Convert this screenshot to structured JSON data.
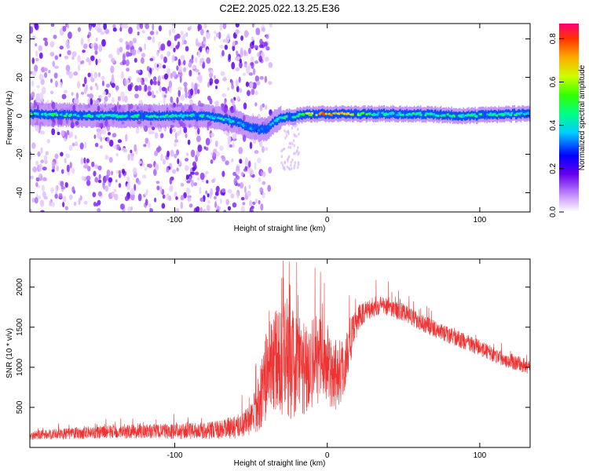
{
  "title": "C2E2.2025.022.13.25.E36",
  "chart_data": [
    {
      "type": "heatmap",
      "title": "C2E2.2025.022.13.25.E36",
      "xlabel": "Height of straight line (km)",
      "ylabel": "Frequency (Hz)",
      "xlim": [
        -195,
        133
      ],
      "ylim": [
        -50,
        48
      ],
      "xticks": [
        -100,
        0,
        100
      ],
      "yticks": [
        -40,
        -20,
        0,
        20,
        40
      ],
      "colorbar": {
        "label": "Normalized spectral amplitude",
        "range": [
          0.0,
          0.87
        ],
        "ticks": [
          "0.0",
          "0.2",
          "0.4",
          "0.6",
          "0.8"
        ],
        "colormap": "white-purple-blue-cyan-green-yellow-red"
      },
      "ridge": {
        "x": [
          -195,
          -150,
          -100,
          -80,
          -60,
          -50,
          -45,
          -40,
          -35,
          -30,
          -20,
          -10,
          0,
          10,
          30,
          60,
          90,
          120,
          133
        ],
        "freq": [
          1,
          0,
          0,
          0,
          -3,
          -6,
          -7,
          -7,
          -3,
          -1,
          0,
          1,
          1,
          1,
          1,
          1,
          0,
          1,
          1
        ],
        "amplitude": [
          0.55,
          0.5,
          0.5,
          0.5,
          0.45,
          0.4,
          0.35,
          0.35,
          0.45,
          0.5,
          0.55,
          0.7,
          0.85,
          0.8,
          0.5,
          0.5,
          0.5,
          0.5,
          0.5
        ]
      },
      "noise_region": {
        "x_range": [
          -195,
          -45
        ],
        "amplitude": "low (0.0-0.2)"
      }
    },
    {
      "type": "line",
      "title": "",
      "xlabel": "Height of straight line (km)",
      "ylabel": "SNR (10 * v/v)",
      "xlim": [
        -195,
        133
      ],
      "ylim": [
        0,
        2350
      ],
      "xticks": [
        -100,
        0,
        100
      ],
      "yticks": [
        500,
        1000,
        1500,
        2000
      ],
      "color": "#ee3333",
      "envelope": {
        "x": [
          -195,
          -180,
          -160,
          -140,
          -120,
          -100,
          -80,
          -60,
          -50,
          -45,
          -40,
          -35,
          -30,
          -25,
          -20,
          -15,
          -10,
          -5,
          0,
          5,
          10,
          15,
          20,
          25,
          30,
          35,
          40,
          50,
          60,
          70,
          80,
          90,
          100,
          110,
          120,
          133
        ],
        "mean": [
          150,
          165,
          180,
          195,
          200,
          200,
          210,
          250,
          350,
          550,
          900,
          1100,
          1050,
          1100,
          1000,
          1000,
          1050,
          1100,
          1000,
          950,
          950,
          1300,
          1600,
          1700,
          1750,
          1780,
          1760,
          1680,
          1580,
          1480,
          1400,
          1320,
          1240,
          1150,
          1080,
          1000
        ],
        "spread": [
          80,
          90,
          110,
          120,
          130,
          140,
          150,
          200,
          300,
          500,
          800,
          900,
          1000,
          1100,
          900,
          900,
          900,
          800,
          700,
          700,
          600,
          400,
          250,
          200,
          180,
          170,
          170,
          160,
          160,
          150,
          150,
          150,
          140,
          140,
          140,
          140
        ]
      },
      "peaks": [
        {
          "x": -29,
          "y": 2330
        },
        {
          "x": -25,
          "y": 2320
        },
        {
          "x": -20,
          "y": 2310
        },
        {
          "x": -8,
          "y": 2240
        },
        {
          "x": 32,
          "y": 2090
        },
        {
          "x": 40,
          "y": 2070
        }
      ]
    }
  ]
}
